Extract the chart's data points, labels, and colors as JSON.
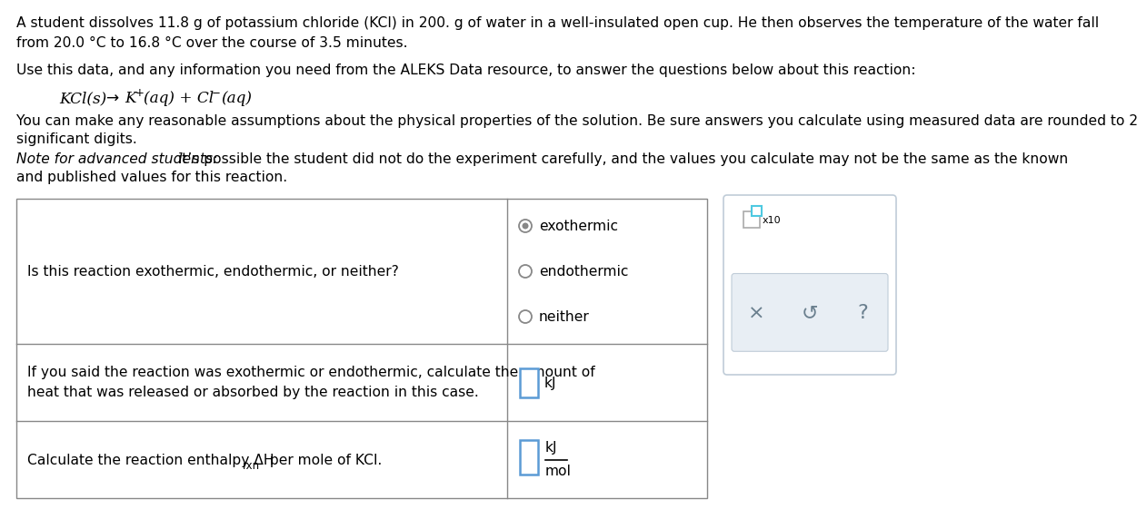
{
  "bg_color": "#ffffff",
  "text_color": "#000000",
  "gray_line": "#888888",
  "blue_box": "#5b9bd5",
  "cyan_box": "#4ec9e1",
  "panel_bg": "#e8eef4",
  "panel_border": "#c0ccd8",
  "radio_ring": "#888888",
  "btn_color": "#6a7f8e",
  "line1": "A student dissolves 11.8 g of potassium chloride (KCl) in 200. g of water in a well-insulated open cup. He then observes the temperature of the water fall",
  "line2": "from 20.0 °C to 16.8 °C over the course of 3.5 minutes.",
  "line3": "Use this data, and any information you need from the ALEKS Data resource, to answer the questions below about this reaction:",
  "line4": "You can make any reasonable assumptions about the physical properties of the solution. Be sure answers you calculate using measured data are rounded to 2",
  "line5": "significant digits.",
  "note_italic": "Note for advanced students:",
  "note_rest": " it’s possible the student did not do the experiment carefully, and the values you calculate may not be the same as the known",
  "line7": "and published values for this reaction.",
  "q1": "Is this reaction exothermic, endothermic, or neither?",
  "q2_line1": "If you said the reaction was exothermic or endothermic, calculate the amount of",
  "q2_line2": "heat that was released or absorbed by the reaction in this case.",
  "q3_main": "Calculate the reaction enthalpy ΔH",
  "q3_sub": "rxn",
  "q3_end": " per mole of KCl.",
  "radio_labels": [
    "exothermic",
    "endothermic",
    "neither"
  ],
  "unit_kj": "kJ",
  "unit_mol": "mol",
  "x10_label": "x10"
}
